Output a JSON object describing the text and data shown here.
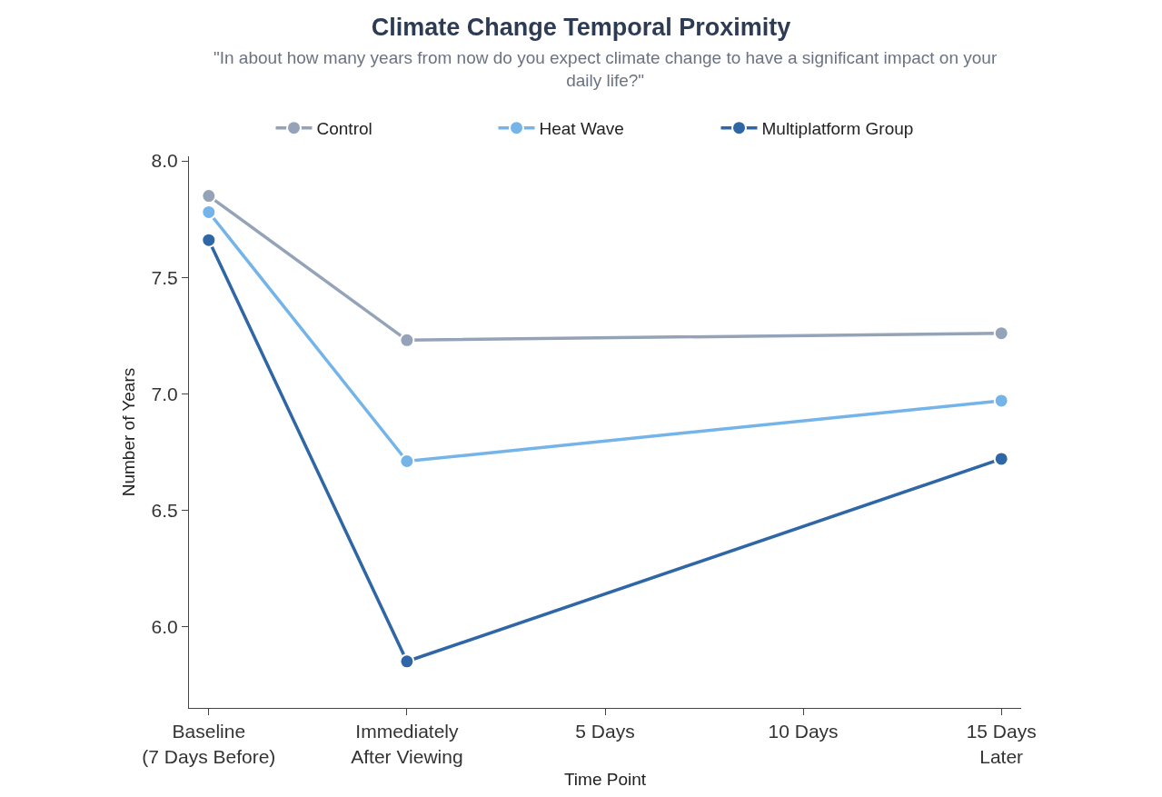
{
  "chart_data": {
    "type": "line",
    "title": "Climate Change Temporal Proximity",
    "subtitle": "\"In about how many years from now do you expect climate change to have a significant impact on your daily life?\"",
    "xlabel": "Time Point",
    "ylabel": "Number of Years",
    "categories": [
      "Baseline\n(7 Days Before)",
      "Immediately\nAfter Viewing",
      "5 Days",
      "10 Days",
      "15 Days\nLater"
    ],
    "ylim": [
      5.65,
      8.02
    ],
    "yticks": [
      {
        "value": 6,
        "label": "6.0"
      },
      {
        "value": 6.5,
        "label": "6.5"
      },
      {
        "value": 7,
        "label": "7.0"
      },
      {
        "value": 7.5,
        "label": "7.5"
      },
      {
        "value": 8,
        "label": "8.0"
      }
    ],
    "series": [
      {
        "name": "Control",
        "color": "#94a3b8",
        "values": [
          7.85,
          7.23,
          null,
          null,
          7.26
        ]
      },
      {
        "name": "Heat Wave",
        "color": "#74b4e8",
        "values": [
          7.78,
          6.71,
          null,
          null,
          6.97
        ]
      },
      {
        "name": "Multiplatform Group",
        "color": "#2f66a6",
        "values": [
          7.66,
          5.85,
          null,
          null,
          6.72
        ]
      }
    ],
    "grid": false,
    "legend": "top",
    "marker": "circle",
    "line_style": "solid"
  }
}
